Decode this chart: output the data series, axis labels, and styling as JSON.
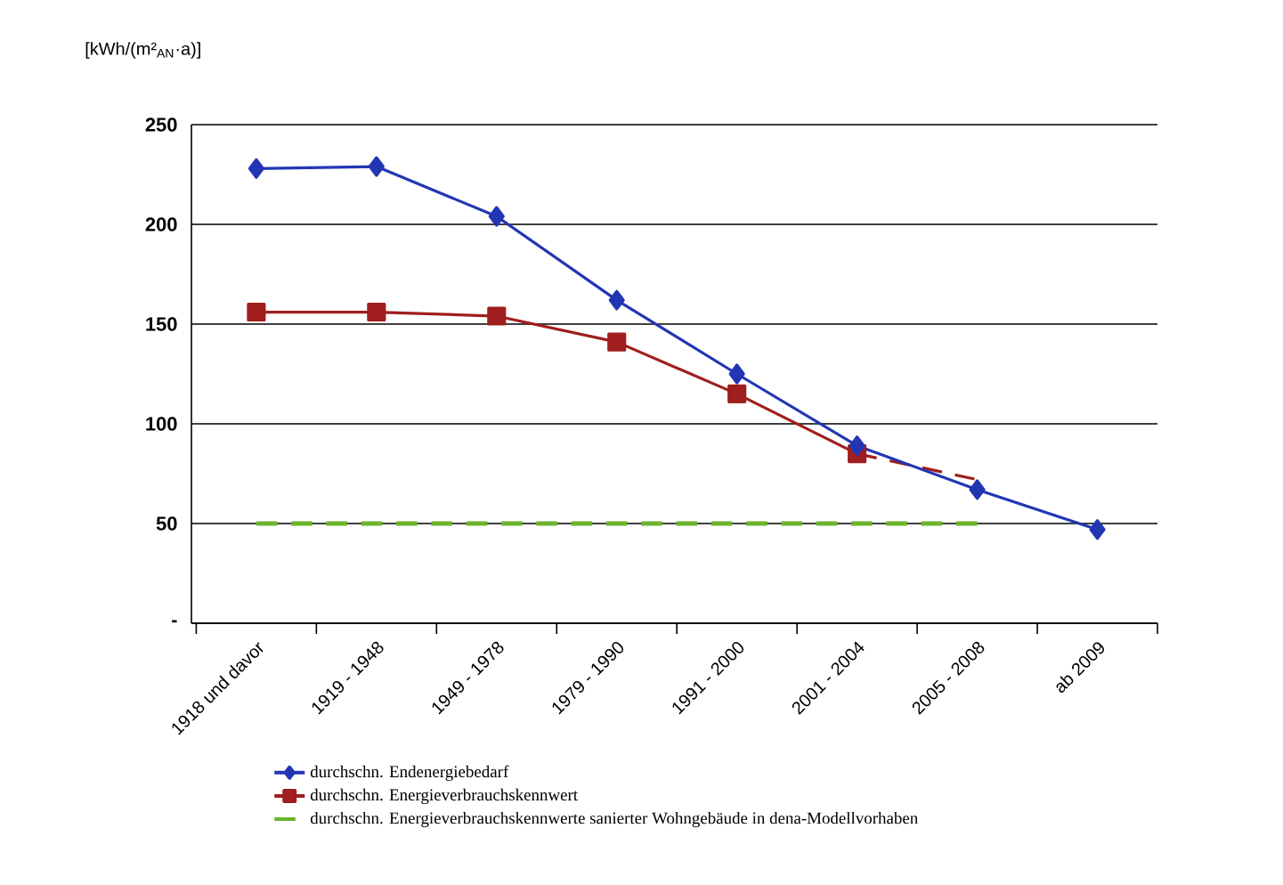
{
  "chart_data": {
    "type": "line",
    "ylabel": "[kWh/(m²$_{AN}$·a)]",
    "categories": [
      "1918 und davor",
      "1919 - 1948",
      "1949 - 1978",
      "1979 - 1990",
      "1991 - 2000",
      "2001 - 2004",
      "2005 - 2008",
      "ab 2009"
    ],
    "series": [
      {
        "name": "durchschn. Endenergiebedarf",
        "color": "#2236b4",
        "marker": "diamond",
        "line_style": "solid",
        "values": [
          228,
          229,
          204,
          162,
          125,
          89,
          67,
          47
        ]
      },
      {
        "name": "durchschn. Energieverbrauchskennwert",
        "color": "#a01e1e",
        "marker": "square",
        "line_style": "solid",
        "values": [
          156,
          156,
          154,
          141,
          115,
          85,
          null,
          null
        ]
      },
      {
        "color": "#a01e1e",
        "line_style": "dashed",
        "values": [
          null,
          null,
          null,
          null,
          null,
          85,
          72,
          null
        ]
      },
      {
        "name": "durchschn. Energieverbrauchskennwerte sanierter Wohngebäude in dena-Modellvorhaben",
        "color": "#6cb42c",
        "marker": "none",
        "line_style": "dashed",
        "values": [
          50,
          50,
          50,
          50,
          50,
          50,
          50,
          null
        ]
      }
    ],
    "ylim": [
      0,
      250
    ],
    "yticks": [
      {
        "value": 0,
        "label": "-"
      },
      50,
      100,
      150,
      200,
      250
    ],
    "grid": "y",
    "legend": "bottom"
  }
}
